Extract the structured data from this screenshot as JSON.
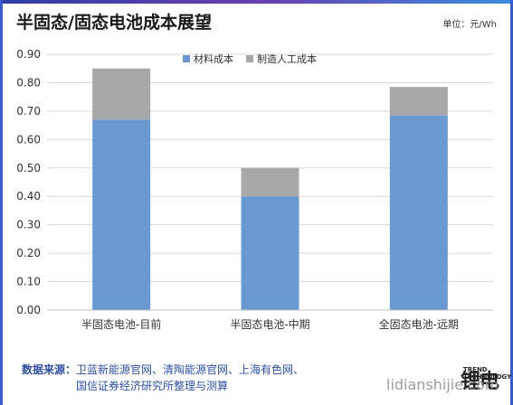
{
  "header": {
    "title": "半固态/固态电池成本展望",
    "unit": "单位：元/Wh"
  },
  "colors": {
    "material": "#6a98d0",
    "labor": "#a8a8a8",
    "accent": "#3a5cc8"
  },
  "chart_data": {
    "type": "bar",
    "stacked": true,
    "categories": [
      "半固态电池-目前",
      "半固态电池-中期",
      "全固态电池-远期"
    ],
    "series": [
      {
        "name": "材料成本",
        "values": [
          0.67,
          0.4,
          0.685
        ]
      },
      {
        "name": "制造人工成本",
        "values": [
          0.18,
          0.1,
          0.1
        ]
      }
    ],
    "ylim": [
      0,
      0.9
    ],
    "yticks": [
      "0.00",
      "0.10",
      "0.20",
      "0.30",
      "0.40",
      "0.50",
      "0.60",
      "0.70",
      "0.80",
      "0.90"
    ],
    "legend_position": "top-right",
    "grid": true
  },
  "footer": {
    "source_label": "数据来源：",
    "source_line1": "卫蓝新能源官网、清陶能源官网、上海有色网、",
    "source_line2": "国信证券经济研究所整理与测算",
    "brand_text": "锂电",
    "brand_sub1": "TREND",
    "brand_sub2": "TECHNOLOGY",
    "watermark": "lidianshijie.com"
  }
}
